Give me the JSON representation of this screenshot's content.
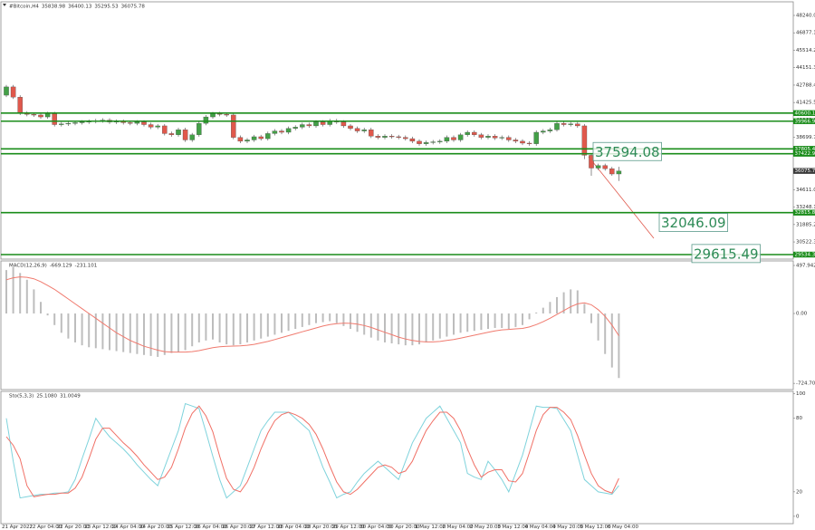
{
  "chart_data": [
    {
      "type": "candlestick",
      "title": "#Bitcoin,H4",
      "categories": [
        "21 Apr 2022",
        null,
        null,
        null,
        "22 Apr 04:00",
        null,
        null,
        null,
        "22 Apr 20:00",
        null,
        null,
        null,
        "23 Apr 12:00",
        null,
        null,
        null,
        "24 Apr 04:00",
        null,
        null,
        null,
        "24 Apr 20:00",
        null,
        null,
        null,
        "25 Apr 12:00",
        null,
        null,
        null,
        "26 Apr 04:00",
        null,
        null,
        null,
        "26 Apr 20:00",
        null,
        null,
        null,
        "27 Apr 12:00",
        null,
        null,
        null,
        "28 Apr 04:00",
        null,
        null,
        null,
        "28 Apr 20:00",
        null,
        null,
        null,
        "29 Apr 12:00",
        null,
        null,
        null,
        "30 Apr 04:00",
        null,
        null,
        null,
        "30 Apr 20:00",
        null,
        null,
        null,
        "1 May 12:00",
        null,
        null,
        null,
        "2 May 04:00",
        null,
        null,
        null,
        "2 May 20:00",
        null,
        null,
        null,
        "3 May 12:00",
        null,
        null,
        null,
        "4 May 04:00",
        null,
        null,
        null,
        "4 May 20:00",
        null,
        null,
        null,
        "5 May 12:00",
        null,
        null,
        null,
        "6 May 04:00",
        null
      ],
      "series": [
        {
          "up_color": "#43a047",
          "down_color": "#e0584c",
          "open": [
            42000,
            42650,
            41850,
            40600,
            40500,
            40450,
            40300,
            40550,
            39700,
            39750,
            39800,
            39850,
            39900,
            39950,
            40000,
            40050,
            39900,
            39950,
            39850,
            39800,
            39900,
            39700,
            39500,
            39600,
            39000,
            38900,
            39300,
            38500,
            38900,
            39800,
            40300,
            40550,
            40500,
            40450,
            38700,
            38400,
            38500,
            38750,
            38600,
            39000,
            39200,
            39100,
            39400,
            39500,
            39700,
            39600,
            39900,
            39700,
            40000,
            39900,
            39600,
            39400,
            39200,
            39300,
            38800,
            38700,
            38800,
            38750,
            38700,
            38600,
            38400,
            38200,
            38300,
            38350,
            38400,
            38700,
            38500,
            38900,
            39100,
            38900,
            38700,
            38800,
            38650,
            38700,
            38500,
            38400,
            38250,
            38200,
            39100,
            39200,
            39300,
            39800,
            39700,
            39750,
            39600,
            37300,
            36300,
            36500,
            36250,
            35838.98
          ],
          "high": [
            42800,
            42800,
            42000,
            40750,
            40650,
            40600,
            40700,
            40700,
            39900,
            39950,
            40000,
            40050,
            40100,
            40150,
            40200,
            40200,
            40100,
            40100,
            40000,
            40050,
            40050,
            39850,
            39750,
            39750,
            39150,
            39450,
            39450,
            39050,
            39950,
            40450,
            40700,
            40700,
            40650,
            40600,
            38850,
            38650,
            38900,
            38900,
            39150,
            39350,
            39350,
            39550,
            39650,
            39850,
            39850,
            40050,
            40050,
            40150,
            40150,
            40050,
            39750,
            39550,
            39450,
            39450,
            38950,
            38950,
            38950,
            38900,
            38850,
            38750,
            38550,
            38450,
            38500,
            38550,
            38850,
            38850,
            39050,
            39250,
            39250,
            39050,
            38950,
            38950,
            38850,
            38850,
            38650,
            38550,
            38400,
            39250,
            39350,
            39450,
            39950,
            39950,
            39900,
            39900,
            39750,
            37450,
            36650,
            36650,
            36400,
            36400.13
          ],
          "low": [
            41850,
            41700,
            40450,
            40350,
            40300,
            40150,
            40150,
            39550,
            39550,
            39600,
            39650,
            39700,
            39750,
            39800,
            39850,
            39750,
            39750,
            39700,
            39650,
            39650,
            39550,
            39350,
            39350,
            38850,
            38750,
            38750,
            38350,
            38350,
            38750,
            39650,
            40150,
            40350,
            40300,
            38550,
            38250,
            38250,
            38350,
            38450,
            38450,
            38850,
            38950,
            38950,
            39250,
            39350,
            39450,
            39450,
            39550,
            39550,
            39750,
            39450,
            39250,
            39050,
            39050,
            38650,
            38550,
            38550,
            38600,
            38550,
            38450,
            38250,
            38050,
            38050,
            38150,
            38200,
            38250,
            38350,
            38350,
            38750,
            38750,
            38550,
            38550,
            38500,
            38500,
            38350,
            38250,
            38100,
            38050,
            38050,
            38950,
            39050,
            39150,
            39550,
            39550,
            39450,
            37000,
            35700,
            36150,
            36100,
            35700,
            35295.53
          ],
          "close": [
            42650,
            41850,
            40600,
            40500,
            40450,
            40300,
            40550,
            39700,
            39750,
            39800,
            39850,
            39900,
            39950,
            40000,
            40050,
            39900,
            39950,
            39850,
            39800,
            39900,
            39700,
            39500,
            39600,
            39000,
            38900,
            39300,
            38500,
            38900,
            39800,
            40300,
            40550,
            40500,
            40450,
            38700,
            38400,
            38500,
            38750,
            38600,
            39000,
            39200,
            39100,
            39400,
            39500,
            39700,
            39600,
            39900,
            39700,
            40000,
            39900,
            39600,
            39400,
            39200,
            39300,
            38800,
            38700,
            38800,
            38750,
            38700,
            38600,
            38400,
            38200,
            38300,
            38350,
            38400,
            38700,
            38500,
            38900,
            39100,
            38900,
            38700,
            38800,
            38650,
            38700,
            38500,
            38400,
            38250,
            38200,
            39100,
            39200,
            39300,
            39800,
            39700,
            39750,
            39600,
            37300,
            36300,
            36500,
            36250,
            35838.98,
            36075.78
          ]
        }
      ],
      "ylim": [
        29180,
        49303
      ],
      "yticks": [
        {
          "value": 48240,
          "label": "48240.00"
        },
        {
          "value": 46877.1,
          "label": "46877.10"
        },
        {
          "value": 45514.2,
          "label": "45514.20"
        },
        {
          "value": 44151.3,
          "label": "44151.30"
        },
        {
          "value": 42788.4,
          "label": "42788.40"
        },
        {
          "value": 41425.5,
          "label": "41425.50"
        },
        {
          "value": 40062.6,
          "label": "40062.60"
        },
        {
          "value": 38699.7,
          "label": "38699.70"
        },
        {
          "value": 37336.8,
          "label": "37336.80"
        },
        {
          "value": 35973.9,
          "label": "35973.90"
        },
        {
          "value": 34611,
          "label": "34611.00"
        },
        {
          "value": 33248.1,
          "label": "33248.10"
        },
        {
          "value": 31885.2,
          "label": "31885.20"
        },
        {
          "value": 30522.3,
          "label": "30522.30"
        }
      ],
      "levels": [
        {
          "value": 40600.18,
          "color": "#1a8c1a"
        },
        {
          "value": 39966.94,
          "color": "#1a8c1a"
        },
        {
          "value": 37805.4,
          "color": "#1a8c1a"
        },
        {
          "value": 37422.98,
          "color": "#1a8c1a"
        },
        {
          "value": 32815.84,
          "color": "#1a8c1a"
        },
        {
          "value": 29534.3,
          "color": "#1a8c1a"
        }
      ],
      "annotations": [
        37594.08,
        32046.09,
        29615.49
      ]
    },
    {
      "type": "macd",
      "title": "MACD(12,26,9)",
      "series": [
        {
          "color": "#bdbdbd",
          "values": [
            450,
            480,
            420,
            350,
            250,
            120,
            -20,
            -120,
            -200,
            -260,
            -300,
            -330,
            -350,
            -360,
            -370,
            -380,
            -390,
            -400,
            -410,
            -420,
            -430,
            -440,
            -450,
            -430,
            -410,
            -400,
            -380,
            -340,
            -300,
            -280,
            -270,
            -300,
            -320,
            -330,
            -320,
            -300,
            -280,
            -260,
            -240,
            -220,
            -200,
            -180,
            -160,
            -140,
            -120,
            -100,
            -90,
            -80,
            -100,
            -130,
            -160,
            -190,
            -220,
            -250,
            -280,
            -300,
            -310,
            -320,
            -330,
            -330,
            -320,
            -300,
            -280,
            -260,
            -240,
            -220,
            -200,
            -190,
            -180,
            -170,
            -160,
            -150,
            -150,
            -160,
            -140,
            -120,
            -60,
            10,
            60,
            120,
            170,
            220,
            250,
            240,
            100,
            -100,
            -280,
            -420,
            -560,
            -669.129
          ]
        },
        {
          "color": "#f07a6e",
          "values": [
            350,
            370,
            380,
            375,
            360,
            330,
            290,
            250,
            200,
            150,
            100,
            50,
            0,
            -50,
            -100,
            -150,
            -200,
            -240,
            -280,
            -310,
            -340,
            -360,
            -380,
            -395,
            -400,
            -400,
            -400,
            -395,
            -385,
            -370,
            -355,
            -345,
            -340,
            -338,
            -335,
            -330,
            -320,
            -305,
            -290,
            -270,
            -250,
            -230,
            -210,
            -190,
            -170,
            -150,
            -130,
            -115,
            -105,
            -100,
            -102,
            -110,
            -125,
            -145,
            -170,
            -195,
            -220,
            -245,
            -265,
            -280,
            -290,
            -295,
            -295,
            -290,
            -280,
            -270,
            -255,
            -240,
            -225,
            -210,
            -195,
            -180,
            -170,
            -165,
            -160,
            -155,
            -140,
            -115,
            -85,
            -50,
            -10,
            30,
            70,
            100,
            110,
            90,
            40,
            -30,
            -120,
            -231.101
          ]
        }
      ],
      "ylim": [
        -789,
        545
      ],
      "yticks": [
        497.942,
        {
          "value": 0,
          "label": "0.00"
        },
        -724.704
      ]
    },
    {
      "type": "stochastic",
      "title": "Sto(5,3,3)",
      "title_values": [
        {
          "value": 25.108,
          "label": "25.1080"
        },
        {
          "value": 31.0049,
          "label": "31.0049"
        }
      ],
      "series": [
        {
          "color": "#7fd3dc",
          "values": [
            80,
            45,
            15,
            16,
            17,
            18,
            18,
            19,
            19,
            20,
            30,
            47,
            63,
            80,
            72,
            65,
            60,
            55,
            49,
            42,
            36,
            30,
            25,
            40,
            55,
            70,
            92,
            90,
            88,
            69,
            49,
            30,
            15,
            20,
            25,
            40,
            55,
            70,
            78,
            85,
            85,
            85,
            80,
            75,
            70,
            55,
            40,
            28,
            15,
            18,
            20,
            28,
            35,
            40,
            45,
            40,
            35,
            30,
            45,
            60,
            70,
            80,
            85,
            90,
            80,
            70,
            60,
            35,
            32,
            30,
            45,
            38,
            30,
            20,
            35,
            50,
            70,
            90,
            89,
            89,
            88,
            79,
            70,
            50,
            30,
            25,
            20,
            19,
            18,
            25.108
          ]
        },
        {
          "color": "#f07066",
          "values": [
            65,
            58,
            47,
            25,
            16,
            17,
            18,
            18,
            19,
            19,
            23,
            32,
            47,
            63,
            72,
            72,
            66,
            60,
            55,
            49,
            42,
            36,
            30,
            32,
            40,
            55,
            72,
            84,
            90,
            82,
            69,
            49,
            31,
            22,
            20,
            28,
            40,
            55,
            68,
            78,
            83,
            85,
            83,
            80,
            75,
            67,
            55,
            41,
            28,
            20,
            18,
            22,
            28,
            34,
            40,
            42,
            40,
            35,
            37,
            45,
            58,
            70,
            78,
            85,
            85,
            80,
            70,
            55,
            42,
            32,
            36,
            38,
            38,
            29,
            28,
            35,
            52,
            70,
            83,
            89,
            89,
            85,
            79,
            66,
            50,
            35,
            25,
            21,
            19,
            31.0049
          ]
        }
      ],
      "ylim": [
        -6,
        102
      ],
      "yticks": [
        100,
        80,
        20,
        0
      ]
    }
  ]
}
